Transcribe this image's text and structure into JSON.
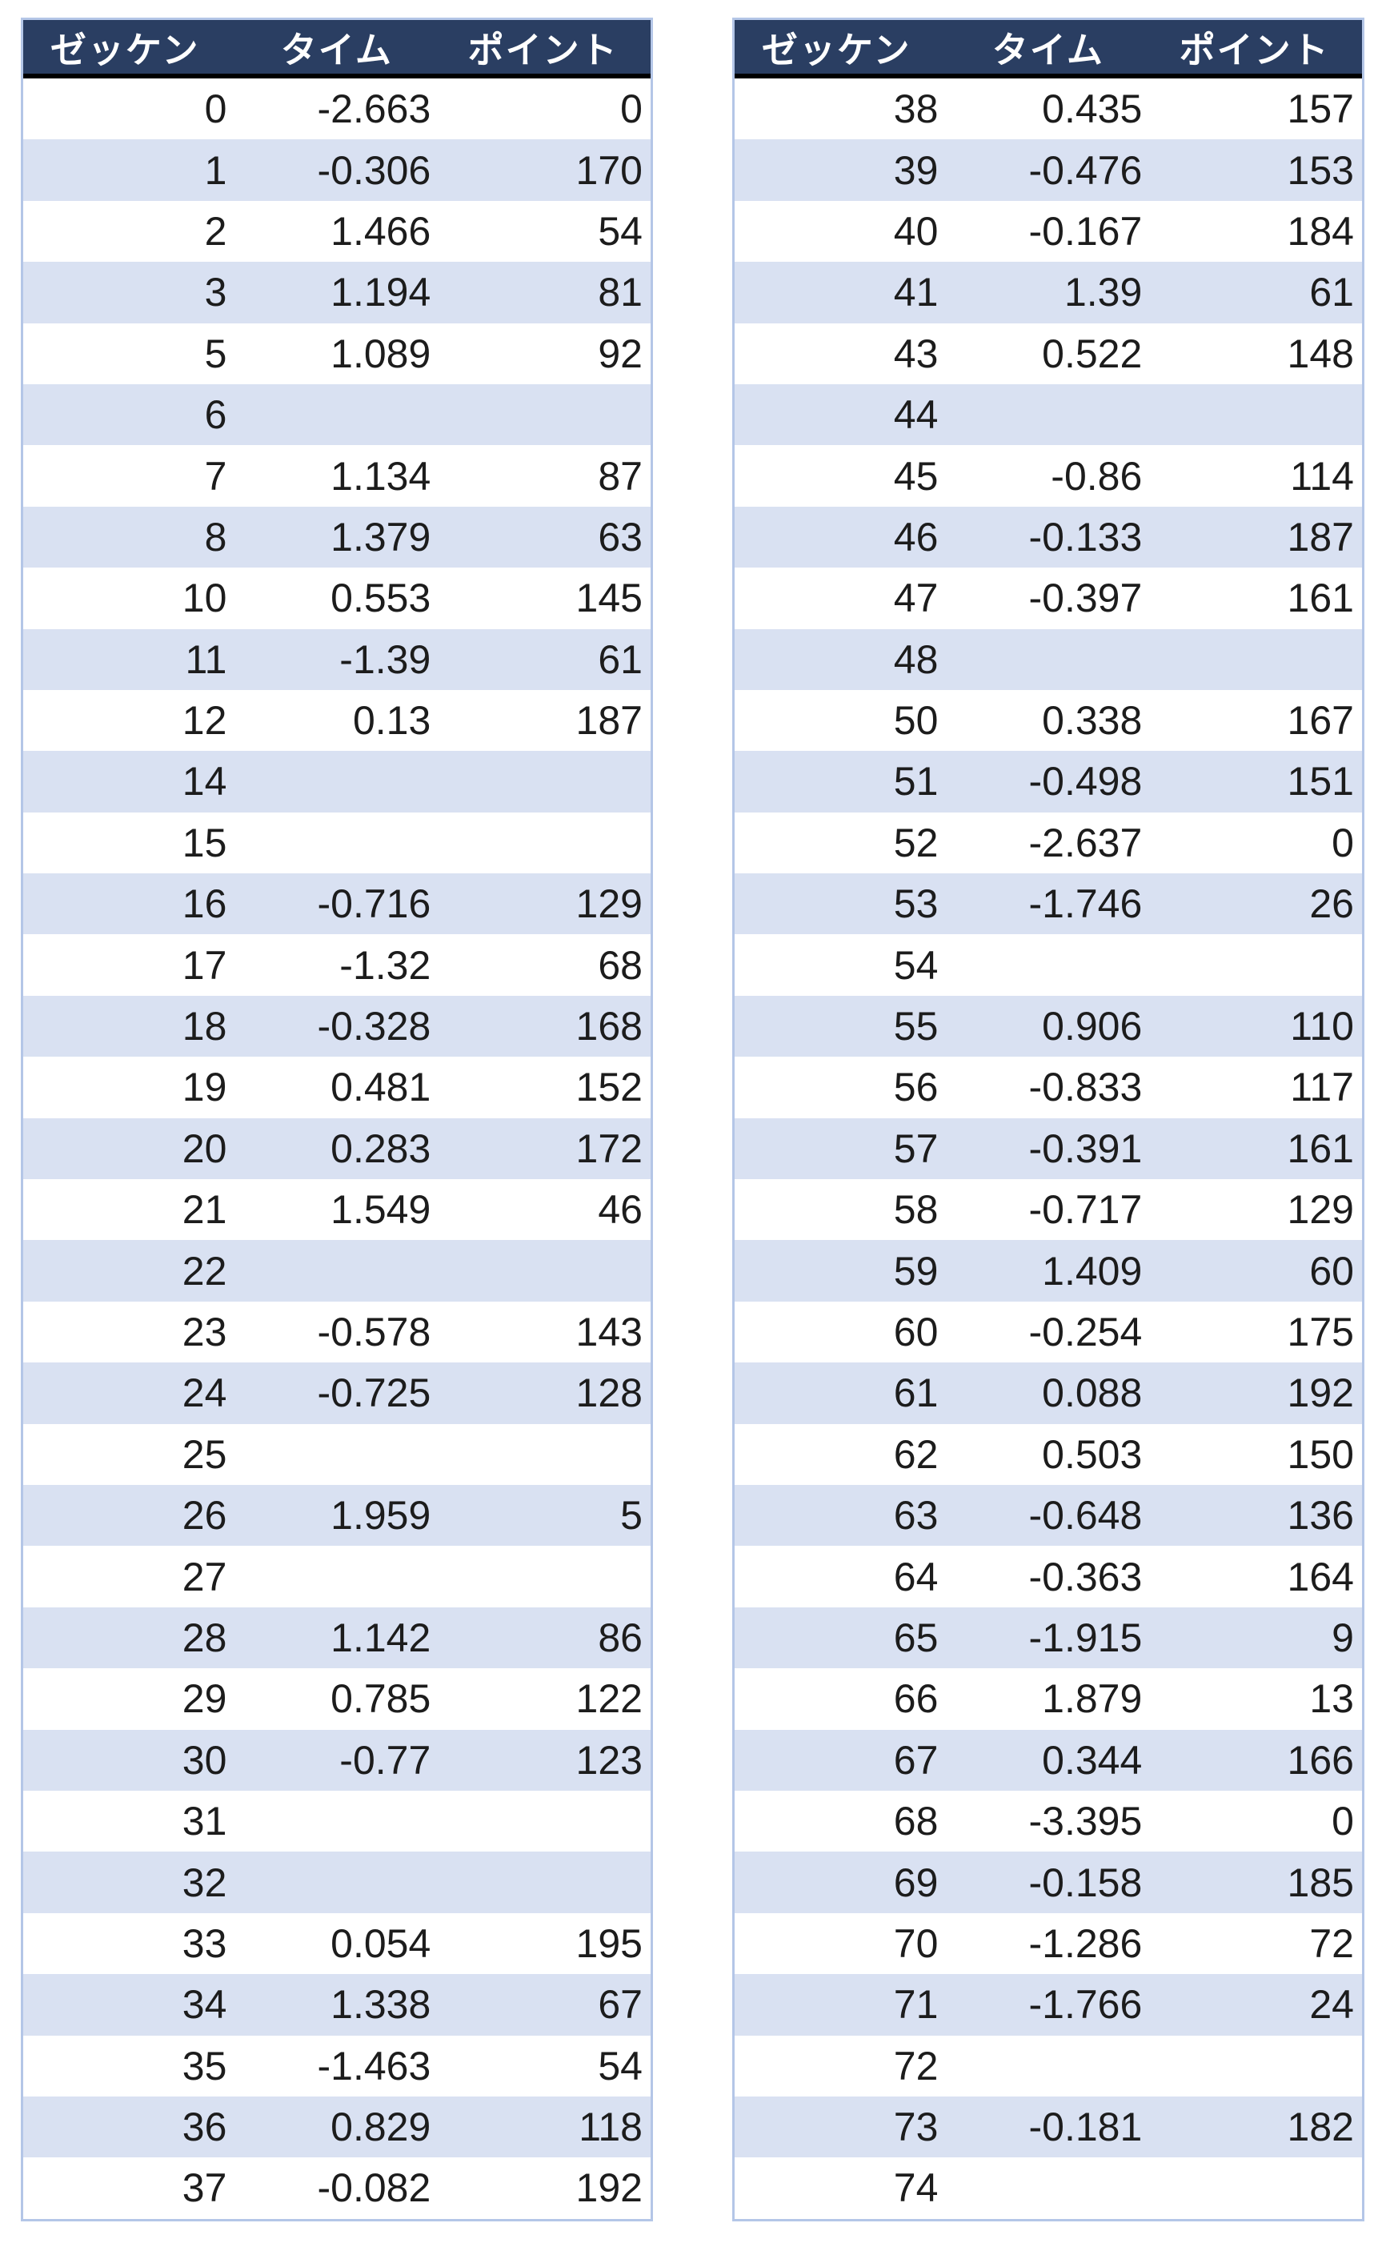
{
  "colors": {
    "header_bg": "#2a3e62",
    "header_text": "#ffffff",
    "alt_row_bg": "#d9e1f2",
    "row_bg": "#ffffff",
    "outer_border": "#b4c6e7",
    "header_divider": "#000000",
    "cell_text": "#1c1c1c"
  },
  "chart_data": [
    {
      "type": "table",
      "title": "",
      "columns": [
        "ゼッケン",
        "タイム",
        "ポイント"
      ],
      "rows": [
        [
          "0",
          "-2.663",
          "0"
        ],
        [
          "1",
          "-0.306",
          "170"
        ],
        [
          "2",
          "1.466",
          "54"
        ],
        [
          "3",
          "1.194",
          "81"
        ],
        [
          "5",
          "1.089",
          "92"
        ],
        [
          "6",
          "",
          ""
        ],
        [
          "7",
          "1.134",
          "87"
        ],
        [
          "8",
          "1.379",
          "63"
        ],
        [
          "10",
          "0.553",
          "145"
        ],
        [
          "11",
          "-1.39",
          "61"
        ],
        [
          "12",
          "0.13",
          "187"
        ],
        [
          "14",
          "",
          ""
        ],
        [
          "15",
          "",
          ""
        ],
        [
          "16",
          "-0.716",
          "129"
        ],
        [
          "17",
          "-1.32",
          "68"
        ],
        [
          "18",
          "-0.328",
          "168"
        ],
        [
          "19",
          "0.481",
          "152"
        ],
        [
          "20",
          "0.283",
          "172"
        ],
        [
          "21",
          "1.549",
          "46"
        ],
        [
          "22",
          "",
          ""
        ],
        [
          "23",
          "-0.578",
          "143"
        ],
        [
          "24",
          "-0.725",
          "128"
        ],
        [
          "25",
          "",
          ""
        ],
        [
          "26",
          "1.959",
          "5"
        ],
        [
          "27",
          "",
          ""
        ],
        [
          "28",
          "1.142",
          "86"
        ],
        [
          "29",
          "0.785",
          "122"
        ],
        [
          "30",
          "-0.77",
          "123"
        ],
        [
          "31",
          "",
          ""
        ],
        [
          "32",
          "",
          ""
        ],
        [
          "33",
          "0.054",
          "195"
        ],
        [
          "34",
          "1.338",
          "67"
        ],
        [
          "35",
          "-1.463",
          "54"
        ],
        [
          "36",
          "0.829",
          "118"
        ],
        [
          "37",
          "-0.082",
          "192"
        ]
      ]
    },
    {
      "type": "table",
      "title": "",
      "columns": [
        "ゼッケン",
        "タイム",
        "ポイント"
      ],
      "rows": [
        [
          "38",
          "0.435",
          "157"
        ],
        [
          "39",
          "-0.476",
          "153"
        ],
        [
          "40",
          "-0.167",
          "184"
        ],
        [
          "41",
          "1.39",
          "61"
        ],
        [
          "43",
          "0.522",
          "148"
        ],
        [
          "44",
          "",
          ""
        ],
        [
          "45",
          "-0.86",
          "114"
        ],
        [
          "46",
          "-0.133",
          "187"
        ],
        [
          "47",
          "-0.397",
          "161"
        ],
        [
          "48",
          "",
          ""
        ],
        [
          "50",
          "0.338",
          "167"
        ],
        [
          "51",
          "-0.498",
          "151"
        ],
        [
          "52",
          "-2.637",
          "0"
        ],
        [
          "53",
          "-1.746",
          "26"
        ],
        [
          "54",
          "",
          ""
        ],
        [
          "55",
          "0.906",
          "110"
        ],
        [
          "56",
          "-0.833",
          "117"
        ],
        [
          "57",
          "-0.391",
          "161"
        ],
        [
          "58",
          "-0.717",
          "129"
        ],
        [
          "59",
          "1.409",
          "60"
        ],
        [
          "60",
          "-0.254",
          "175"
        ],
        [
          "61",
          "0.088",
          "192"
        ],
        [
          "62",
          "0.503",
          "150"
        ],
        [
          "63",
          "-0.648",
          "136"
        ],
        [
          "64",
          "-0.363",
          "164"
        ],
        [
          "65",
          "-1.915",
          "9"
        ],
        [
          "66",
          "1.879",
          "13"
        ],
        [
          "67",
          "0.344",
          "166"
        ],
        [
          "68",
          "-3.395",
          "0"
        ],
        [
          "69",
          "-0.158",
          "185"
        ],
        [
          "70",
          "-1.286",
          "72"
        ],
        [
          "71",
          "-1.766",
          "24"
        ],
        [
          "72",
          "",
          ""
        ],
        [
          "73",
          "-0.181",
          "182"
        ],
        [
          "74",
          "",
          ""
        ]
      ]
    }
  ]
}
